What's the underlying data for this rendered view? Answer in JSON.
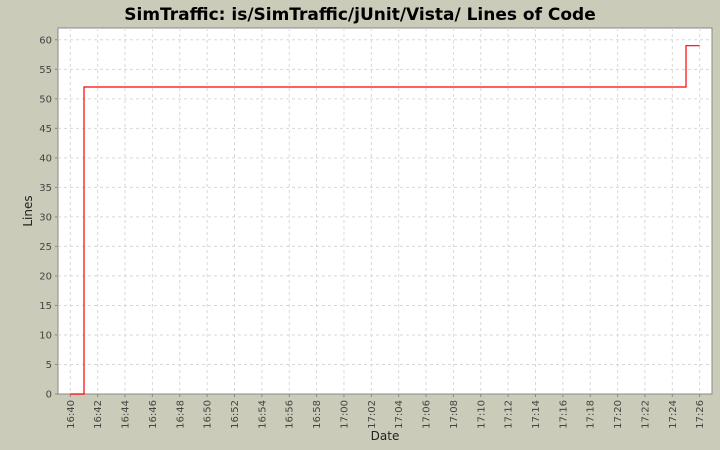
{
  "chart_data": {
    "type": "line",
    "step": true,
    "title": "SimTraffic: is/SimTraffic/jUnit/Vista/ Lines of Code",
    "xlabel": "Date",
    "ylabel": "Lines",
    "xlim": [
      "16:39.1",
      "17:26.9"
    ],
    "ylim": [
      0,
      62
    ],
    "grid": true,
    "x_ticks": [
      "16:40",
      "16:42",
      "16:44",
      "16:46",
      "16:48",
      "16:50",
      "16:52",
      "16:54",
      "16:56",
      "16:58",
      "17:00",
      "17:02",
      "17:04",
      "17:06",
      "17:08",
      "17:10",
      "17:12",
      "17:14",
      "17:16",
      "17:18",
      "17:20",
      "17:22",
      "17:24",
      "17:26"
    ],
    "y_ticks": [
      0,
      5,
      10,
      15,
      20,
      25,
      30,
      35,
      40,
      45,
      50,
      55,
      60
    ],
    "series": [
      {
        "color": "#ff0000",
        "points": [
          {
            "x": "16:40",
            "y": 0
          },
          {
            "x": "16:41",
            "y": 52
          },
          {
            "x": "17:25",
            "y": 59
          },
          {
            "x": "17:26",
            "y": 59
          }
        ]
      }
    ]
  }
}
